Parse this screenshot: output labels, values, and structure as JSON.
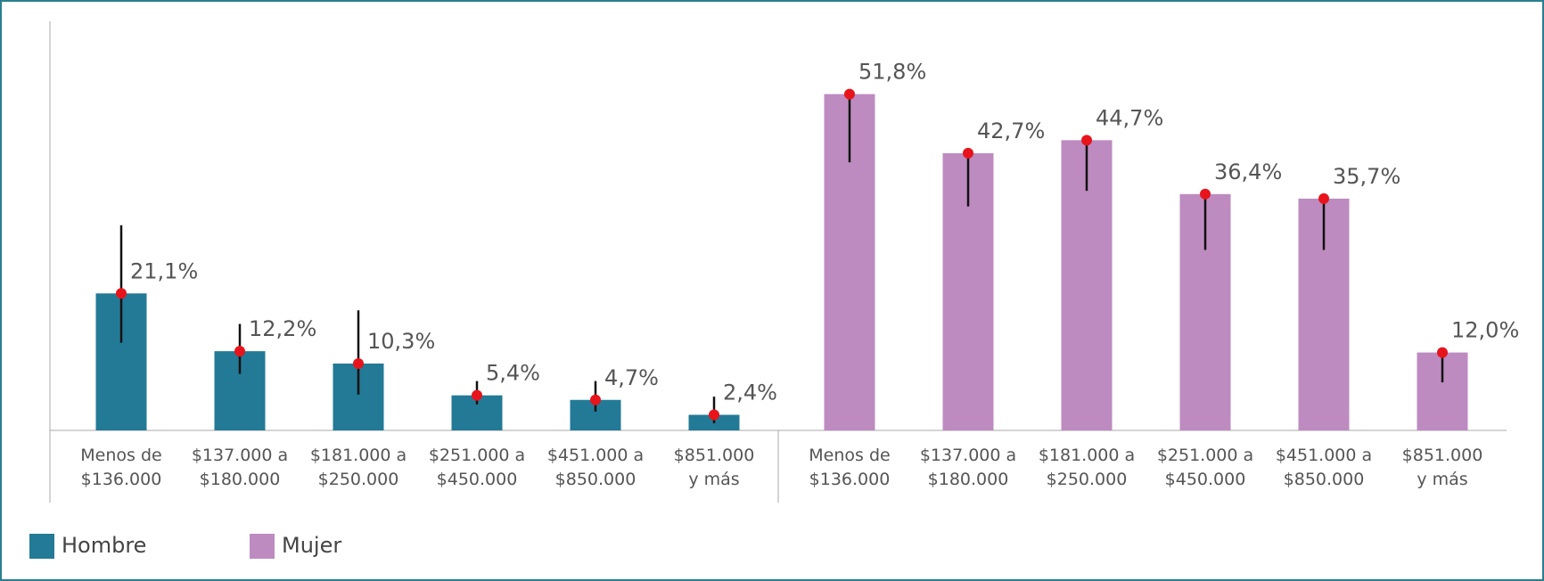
{
  "chart_data": {
    "type": "bar",
    "categories": [
      [
        "Menos de",
        "$136.000"
      ],
      [
        "$137.000 a",
        "$180.000"
      ],
      [
        "$181.000 a",
        "$250.000"
      ],
      [
        "$251.000 a",
        "$450.000"
      ],
      [
        "$451.000 a",
        "$850.000"
      ],
      [
        "$851.000",
        "y más"
      ]
    ],
    "ylim": [
      0,
      63
    ],
    "grid": false,
    "legend": "bottom-left",
    "marker_color": "#e8141c",
    "series": [
      {
        "name": "Hombre",
        "color": "#237a96",
        "values": [
          21.1,
          12.2,
          10.3,
          5.4,
          4.7,
          2.4
        ],
        "value_labels": [
          "21,1%",
          "12,2%",
          "10,3%",
          "5,4%",
          "4,7%",
          "2,4%"
        ],
        "error_minus": [
          7.6,
          3.5,
          4.8,
          1.4,
          1.8,
          1.3
        ],
        "error_plus": [
          10.5,
          4.2,
          8.2,
          2.2,
          2.9,
          2.8
        ]
      },
      {
        "name": "Mujer",
        "color": "#bd8bc0",
        "values": [
          51.8,
          42.7,
          44.7,
          36.4,
          35.7,
          12.0
        ],
        "value_labels": [
          "51,8%",
          "42,7%",
          "44,7%",
          "36,4%",
          "35,7%",
          "12,0%"
        ],
        "error_minus": [
          10.5,
          8.2,
          7.8,
          8.6,
          7.9,
          4.6
        ],
        "error_plus": [
          0,
          0,
          0,
          0,
          0,
          0
        ]
      }
    ]
  }
}
